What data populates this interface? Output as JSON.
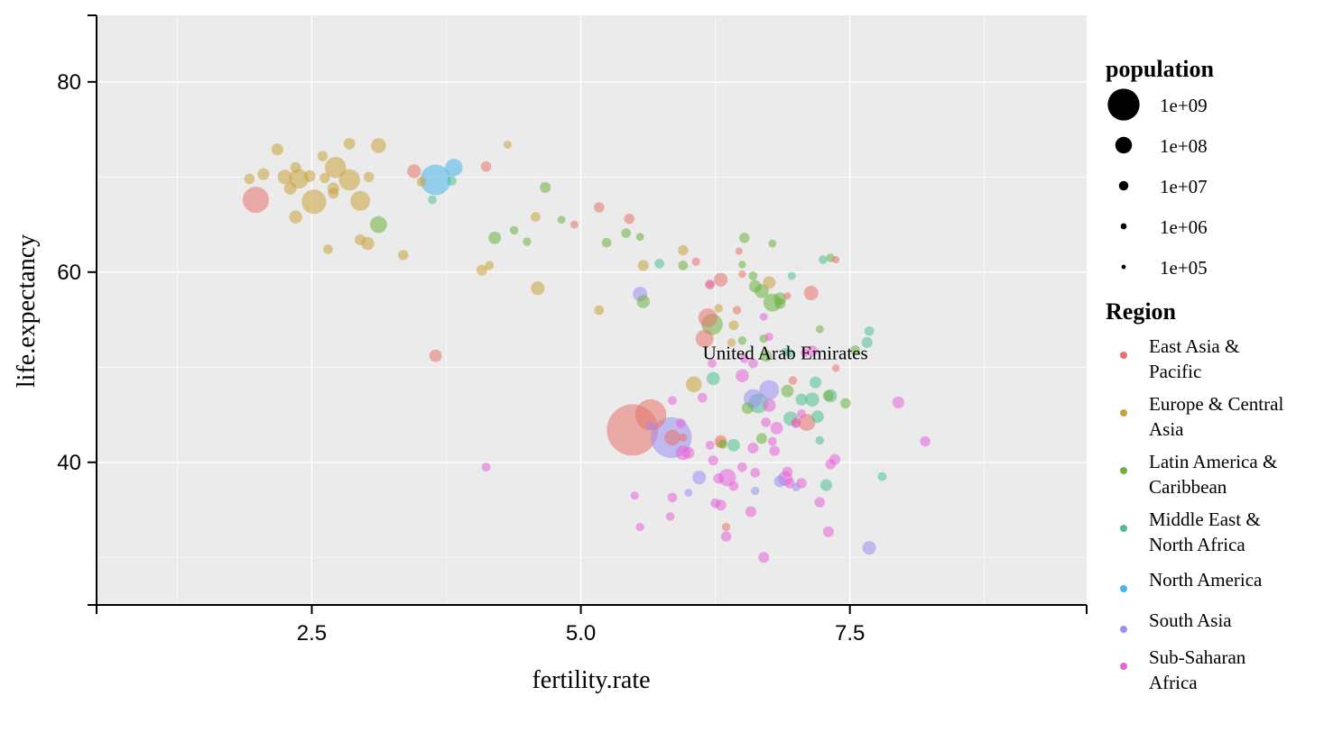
{
  "chart_data": {
    "type": "scatter",
    "xlabel": "fertility.rate",
    "ylabel": "life.expectancy",
    "xlim": [
      0.5,
      9.7
    ],
    "ylim": [
      25,
      87
    ],
    "x_ticks": [
      2.5,
      5.0,
      7.5
    ],
    "x_tick_labels": [
      "2.5",
      "5.0",
      "7.5"
    ],
    "y_ticks": [
      40,
      60,
      80
    ],
    "y_tick_labels": [
      "40",
      "60",
      "80"
    ],
    "grid": true,
    "annotation": {
      "text": "United Arab Emirates",
      "x": 6.9,
      "y": 51.5
    },
    "size_legend": {
      "title": "population",
      "entries": [
        {
          "label": "1e+09",
          "value": 1000000000
        },
        {
          "label": "1e+08",
          "value": 100000000
        },
        {
          "label": "1e+07",
          "value": 10000000
        },
        {
          "label": "1e+06",
          "value": 1000000
        },
        {
          "label": "1e+05",
          "value": 100000
        }
      ]
    },
    "color_legend": {
      "title": "Region",
      "entries": [
        {
          "name": "East Asia & Pacific",
          "lines": [
            "East Asia &",
            "Pacific"
          ],
          "color": "#e8736b"
        },
        {
          "name": "Europe & Central Asia",
          "lines": [
            "Europe & Central",
            "Asia"
          ],
          "color": "#c8a23c"
        },
        {
          "name": "Latin America & Caribbean",
          "lines": [
            "Latin America &",
            "Caribbean"
          ],
          "color": "#6cb33f"
        },
        {
          "name": "Middle East & North Africa",
          "lines": [
            "Middle East &",
            "North Africa"
          ],
          "color": "#4fbf93"
        },
        {
          "name": "North America",
          "lines": [
            "North America"
          ],
          "color": "#49b4e8"
        },
        {
          "name": "South Asia",
          "lines": [
            "South Asia"
          ],
          "color": "#9d8ff2"
        },
        {
          "name": "Sub-Saharan Africa",
          "lines": [
            "Sub-Saharan",
            "Africa"
          ],
          "color": "#e863d8"
        }
      ]
    },
    "series": [
      {
        "name": "East Asia & Pacific",
        "points": [
          [
            5.48,
            43.4,
            1000000000
          ],
          [
            5.65,
            45.0,
            170000000
          ],
          [
            5.85,
            42.6,
            12000000
          ],
          [
            6.18,
            55.2,
            25000000
          ],
          [
            6.3,
            59.2,
            6000000
          ],
          [
            6.15,
            53.0,
            20000000
          ],
          [
            1.98,
            67.6,
            90000000
          ],
          [
            3.45,
            70.6,
            6000000
          ],
          [
            3.65,
            51.2,
            4000000
          ],
          [
            4.12,
            71.1,
            1500000
          ],
          [
            5.17,
            66.8,
            1500000
          ],
          [
            5.45,
            65.6,
            1500000
          ],
          [
            6.07,
            61.1,
            400000
          ],
          [
            6.2,
            58.7,
            300000
          ],
          [
            6.45,
            56.0,
            500000
          ],
          [
            6.47,
            62.2,
            150000
          ],
          [
            6.92,
            57.5,
            150000
          ],
          [
            7.14,
            57.8,
            8000000
          ],
          [
            6.97,
            48.6,
            500000
          ],
          [
            7.1,
            44.2,
            16000000
          ],
          [
            7.37,
            49.9,
            200000
          ],
          [
            7.37,
            61.3,
            150000
          ],
          [
            7.0,
            44.2,
            1000000
          ],
          [
            6.3,
            42.2,
            4000000
          ],
          [
            5.95,
            42.6,
            400000
          ],
          [
            6.35,
            33.2,
            400000
          ],
          [
            4.94,
            65.0,
            300000
          ],
          [
            6.5,
            59.8,
            200000
          ]
        ]
      },
      {
        "name": "Europe & Central Asia",
        "points": [
          [
            1.92,
            69.8,
            1500000
          ],
          [
            2.05,
            70.3,
            3000000
          ],
          [
            2.18,
            72.9,
            3000000
          ],
          [
            2.25,
            70.0,
            8000000
          ],
          [
            2.3,
            68.8,
            4000000
          ],
          [
            2.38,
            69.8,
            28000000
          ],
          [
            2.35,
            71.0,
            2000000
          ],
          [
            2.48,
            70.1,
            3000000
          ],
          [
            2.52,
            67.4,
            70000000
          ],
          [
            2.6,
            72.2,
            1500000
          ],
          [
            2.62,
            69.9,
            1500000
          ],
          [
            2.72,
            71.0,
            40000000
          ],
          [
            2.7,
            68.8,
            3000000
          ],
          [
            2.85,
            69.7,
            40000000
          ],
          [
            2.85,
            73.5,
            2500000
          ],
          [
            2.95,
            67.5,
            30000000
          ],
          [
            3.03,
            70.0,
            1500000
          ],
          [
            3.12,
            73.3,
            9000000
          ],
          [
            2.35,
            65.8,
            5000000
          ],
          [
            2.65,
            62.4,
            1000000
          ],
          [
            2.95,
            63.4,
            2000000
          ],
          [
            3.02,
            63.0,
            5000000
          ],
          [
            3.35,
            61.8,
            1500000
          ],
          [
            3.52,
            69.5,
            1000000
          ],
          [
            4.32,
            73.4,
            300000
          ],
          [
            4.08,
            60.2,
            2000000
          ],
          [
            4.15,
            60.7,
            600000
          ],
          [
            4.58,
            65.8,
            1000000
          ],
          [
            4.6,
            58.3,
            6000000
          ],
          [
            5.17,
            56.0,
            1000000
          ],
          [
            5.58,
            60.7,
            2000000
          ],
          [
            5.95,
            62.3,
            1500000
          ],
          [
            6.28,
            56.2,
            500000
          ],
          [
            6.42,
            54.4,
            1200000
          ],
          [
            6.75,
            58.9,
            4000000
          ],
          [
            6.05,
            48.2,
            12000000
          ],
          [
            6.3,
            42.0,
            1000000
          ],
          [
            6.4,
            52.6,
            500000
          ],
          [
            2.7,
            68.3,
            2000000
          ]
        ]
      },
      {
        "name": "Latin America & Caribbean",
        "points": [
          [
            3.12,
            65.0,
            16000000
          ],
          [
            4.2,
            63.6,
            4000000
          ],
          [
            4.38,
            64.4,
            500000
          ],
          [
            4.5,
            63.2,
            400000
          ],
          [
            4.67,
            68.9,
            2000000
          ],
          [
            4.82,
            65.5,
            300000
          ],
          [
            5.24,
            63.1,
            1000000
          ],
          [
            5.42,
            64.1,
            1000000
          ],
          [
            5.55,
            63.7,
            300000
          ],
          [
            5.95,
            60.7,
            1000000
          ],
          [
            6.52,
            63.6,
            1500000
          ],
          [
            6.5,
            60.8,
            200000
          ],
          [
            6.6,
            59.6,
            600000
          ],
          [
            6.62,
            58.5,
            4000000
          ],
          [
            6.68,
            58.0,
            7000000
          ],
          [
            6.78,
            56.8,
            20000000
          ],
          [
            5.58,
            56.9,
            5000000
          ],
          [
            6.22,
            54.5,
            40000000
          ],
          [
            6.5,
            52.8,
            500000
          ],
          [
            6.78,
            63.0,
            300000
          ],
          [
            6.72,
            51.2,
            3000000
          ],
          [
            6.85,
            57.2,
            4000000
          ],
          [
            6.92,
            47.5,
            4000000
          ],
          [
            6.55,
            45.7,
            3000000
          ],
          [
            6.68,
            42.5,
            2000000
          ],
          [
            7.22,
            54.0,
            300000
          ],
          [
            7.32,
            61.5,
            500000
          ],
          [
            7.3,
            47.0,
            2000000
          ],
          [
            7.46,
            46.2,
            1500000
          ],
          [
            7.55,
            51.8,
            1000000
          ],
          [
            6.32,
            41.9,
            600000
          ],
          [
            6.85,
            56.7,
            2000000
          ],
          [
            6.7,
            53.0,
            500000
          ]
        ]
      },
      {
        "name": "Middle East & North Africa",
        "points": [
          [
            3.62,
            67.6,
            600000
          ],
          [
            3.8,
            69.6,
            1000000
          ],
          [
            5.73,
            60.9,
            1000000
          ],
          [
            6.42,
            41.8,
            4000000
          ],
          [
            6.23,
            48.8,
            5000000
          ],
          [
            6.65,
            46.2,
            30000000
          ],
          [
            6.94,
            51.5,
            500000
          ],
          [
            6.96,
            59.6,
            300000
          ],
          [
            7.05,
            46.6,
            3000000
          ],
          [
            7.15,
            46.6,
            7000000
          ],
          [
            7.18,
            48.4,
            3000000
          ],
          [
            7.2,
            44.8,
            4000000
          ],
          [
            7.22,
            42.3,
            500000
          ],
          [
            7.25,
            61.3,
            500000
          ],
          [
            7.28,
            37.6,
            3000000
          ],
          [
            7.32,
            47.0,
            5000000
          ],
          [
            7.66,
            52.6,
            2000000
          ],
          [
            7.68,
            53.8,
            1000000
          ],
          [
            7.8,
            38.5,
            600000
          ],
          [
            6.95,
            44.6,
            8000000
          ],
          [
            6.9,
            51.6,
            400000
          ]
        ]
      },
      {
        "name": "North America",
        "points": [
          [
            3.65,
            69.7,
            160000000
          ],
          [
            3.82,
            71.0,
            18000000
          ]
        ]
      },
      {
        "name": "South Asia",
        "points": [
          [
            5.84,
            42.6,
            450000000
          ],
          [
            5.55,
            57.7,
            8000000
          ],
          [
            6.6,
            46.7,
            25000000
          ],
          [
            6.75,
            47.6,
            30000000
          ],
          [
            6.1,
            38.4,
            6000000
          ],
          [
            6.0,
            36.8,
            300000
          ],
          [
            6.62,
            37.0,
            400000
          ],
          [
            6.85,
            38.0,
            3000000
          ],
          [
            7.0,
            37.4,
            500000
          ],
          [
            7.68,
            31.0,
            6000000
          ],
          [
            5.65,
            43.8,
            500000
          ]
        ]
      },
      {
        "name": "Sub-Saharan Africa",
        "points": [
          [
            4.12,
            39.5,
            600000
          ],
          [
            5.5,
            36.5,
            400000
          ],
          [
            5.55,
            33.2,
            400000
          ],
          [
            5.83,
            34.3,
            500000
          ],
          [
            5.85,
            36.3,
            1000000
          ],
          [
            5.85,
            46.5,
            600000
          ],
          [
            5.93,
            44.1,
            1000000
          ],
          [
            5.95,
            41.0,
            8000000
          ],
          [
            6.0,
            41.0,
            3000000
          ],
          [
            6.13,
            46.8,
            1000000
          ],
          [
            6.2,
            41.8,
            600000
          ],
          [
            6.23,
            40.2,
            1200000
          ],
          [
            6.25,
            35.7,
            1000000
          ],
          [
            6.28,
            38.3,
            1500000
          ],
          [
            6.3,
            35.5,
            2000000
          ],
          [
            6.36,
            38.4,
            18000000
          ],
          [
            6.35,
            32.2,
            1500000
          ],
          [
            6.42,
            37.5,
            1000000
          ],
          [
            6.5,
            39.5,
            1000000
          ],
          [
            6.5,
            49.1,
            5000000
          ],
          [
            6.58,
            34.8,
            2000000
          ],
          [
            6.6,
            41.5,
            2000000
          ],
          [
            6.62,
            38.9,
            1000000
          ],
          [
            6.7,
            30.0,
            2000000
          ],
          [
            6.72,
            44.2,
            1000000
          ],
          [
            6.78,
            42.2,
            600000
          ],
          [
            6.75,
            46.0,
            5000000
          ],
          [
            6.8,
            41.2,
            1500000
          ],
          [
            6.82,
            43.6,
            4000000
          ],
          [
            6.9,
            38.3,
            8000000
          ],
          [
            6.92,
            39.0,
            1500000
          ],
          [
            6.94,
            37.8,
            1500000
          ],
          [
            7.0,
            44.1,
            1000000
          ],
          [
            7.05,
            37.8,
            1500000
          ],
          [
            7.08,
            51.5,
            400000
          ],
          [
            7.15,
            51.7,
            2000000
          ],
          [
            7.22,
            35.8,
            1500000
          ],
          [
            7.3,
            32.7,
            2000000
          ],
          [
            7.32,
            39.8,
            1500000
          ],
          [
            7.36,
            40.3,
            2000000
          ],
          [
            7.95,
            46.3,
            3000000
          ],
          [
            8.2,
            42.2,
            1500000
          ],
          [
            6.2,
            58.7,
            1200000
          ],
          [
            6.6,
            50.4,
            1000000
          ],
          [
            6.52,
            50.9,
            600000
          ],
          [
            6.22,
            50.4,
            600000
          ],
          [
            7.05,
            45.1,
            600000
          ],
          [
            6.7,
            55.3,
            300000
          ],
          [
            6.75,
            53.2,
            400000
          ]
        ]
      }
    ]
  }
}
